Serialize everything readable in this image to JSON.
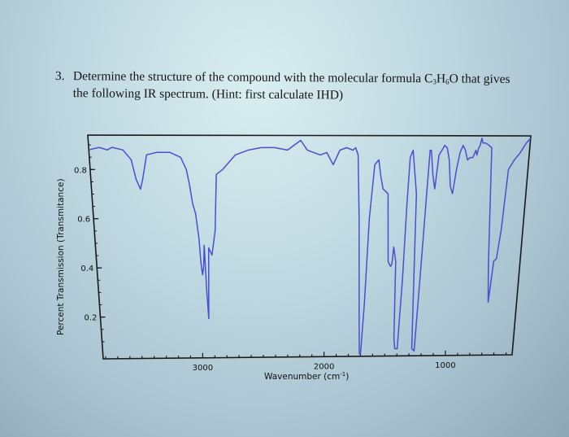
{
  "question": {
    "number": "3.",
    "line1_prefix": "Determine the structure of the compound with the molecular formula ",
    "formula": {
      "c": "C",
      "c_sub": "3",
      "h": "H",
      "h_sub": "6",
      "o": "O"
    },
    "line1_suffix": " that gives",
    "line2": "the following IR spectrum. (Hint: first calculate IHD)"
  },
  "chart_data": {
    "type": "line",
    "title": "",
    "xlabel": "Wavenumber (cm-1)",
    "xlabel_base": "Wavenumber (cm",
    "xlabel_sup": "-1",
    "xlabel_close": ")",
    "ylabel": "Percent Transmission (Transmitance)",
    "xlim": [
      3820,
      450
    ],
    "ylim": [
      0.03,
      0.94
    ],
    "x_ticks": [
      3000,
      2000,
      1000
    ],
    "x_tick_labels": [
      "3000",
      "2000",
      "1000"
    ],
    "y_ticks": [
      0.8,
      0.6,
      0.4,
      0.2
    ],
    "y_tick_labels": [
      "0.8",
      "0.6",
      "0.4",
      "0.2"
    ],
    "grid": false,
    "legend": null,
    "line_color": "#4a4fd0",
    "series": [
      {
        "name": "IR spectrum",
        "x": [
          3820,
          3740,
          3680,
          3640,
          3560,
          3500,
          3470,
          3440,
          3420,
          3380,
          3300,
          3200,
          3120,
          3080,
          3060,
          3040,
          3020,
          3000,
          2990,
          2980,
          2970,
          2960,
          2950,
          2940,
          2925,
          2900,
          2870,
          2850,
          2800,
          2700,
          2600,
          2500,
          2400,
          2300,
          2250,
          2200,
          2150,
          2100,
          2050,
          2000,
          1950,
          1900,
          1850,
          1800,
          1780,
          1760,
          1740,
          1720,
          1710,
          1700,
          1680,
          1660,
          1630,
          1600,
          1580,
          1560,
          1520,
          1500,
          1480,
          1470,
          1460,
          1440,
          1430,
          1420,
          1400,
          1380,
          1370,
          1360,
          1340,
          1300,
          1280,
          1260,
          1240,
          1220,
          1210,
          1200,
          1180,
          1160,
          1140,
          1120,
          1100,
          1080,
          1060,
          1040,
          1020,
          1000,
          980,
          960,
          940,
          920,
          900,
          880,
          860,
          850,
          840,
          830,
          820,
          810,
          790,
          760,
          740,
          700,
          680,
          660,
          640,
          620,
          600,
          560,
          520,
          480,
          450
        ],
        "y": [
          0.88,
          0.89,
          0.88,
          0.89,
          0.88,
          0.84,
          0.76,
          0.72,
          0.76,
          0.86,
          0.87,
          0.87,
          0.85,
          0.8,
          0.74,
          0.66,
          0.62,
          0.52,
          0.42,
          0.37,
          0.4,
          0.49,
          0.3,
          0.19,
          0.48,
          0.45,
          0.55,
          0.78,
          0.8,
          0.86,
          0.88,
          0.89,
          0.89,
          0.88,
          0.9,
          0.92,
          0.88,
          0.87,
          0.86,
          0.87,
          0.82,
          0.88,
          0.89,
          0.88,
          0.89,
          0.86,
          0.6,
          0.2,
          0.04,
          0.04,
          0.25,
          0.6,
          0.82,
          0.84,
          0.77,
          0.72,
          0.7,
          0.42,
          0.4,
          0.41,
          0.48,
          0.42,
          0.1,
          0.06,
          0.06,
          0.35,
          0.66,
          0.85,
          0.88,
          0.7,
          0.06,
          0.05,
          0.35,
          0.7,
          0.88,
          0.88,
          0.78,
          0.72,
          0.86,
          0.88,
          0.9,
          0.89,
          0.84,
          0.73,
          0.7,
          0.8,
          0.87,
          0.9,
          0.88,
          0.84,
          0.85,
          0.85,
          0.88,
          0.86,
          0.89,
          0.9,
          0.93,
          0.91,
          0.91,
          0.9,
          0.89,
          0.4,
          0.25,
          0.42,
          0.43,
          0.55,
          0.8,
          0.84,
          0.87,
          0.91,
          0.93
        ]
      }
    ]
  }
}
